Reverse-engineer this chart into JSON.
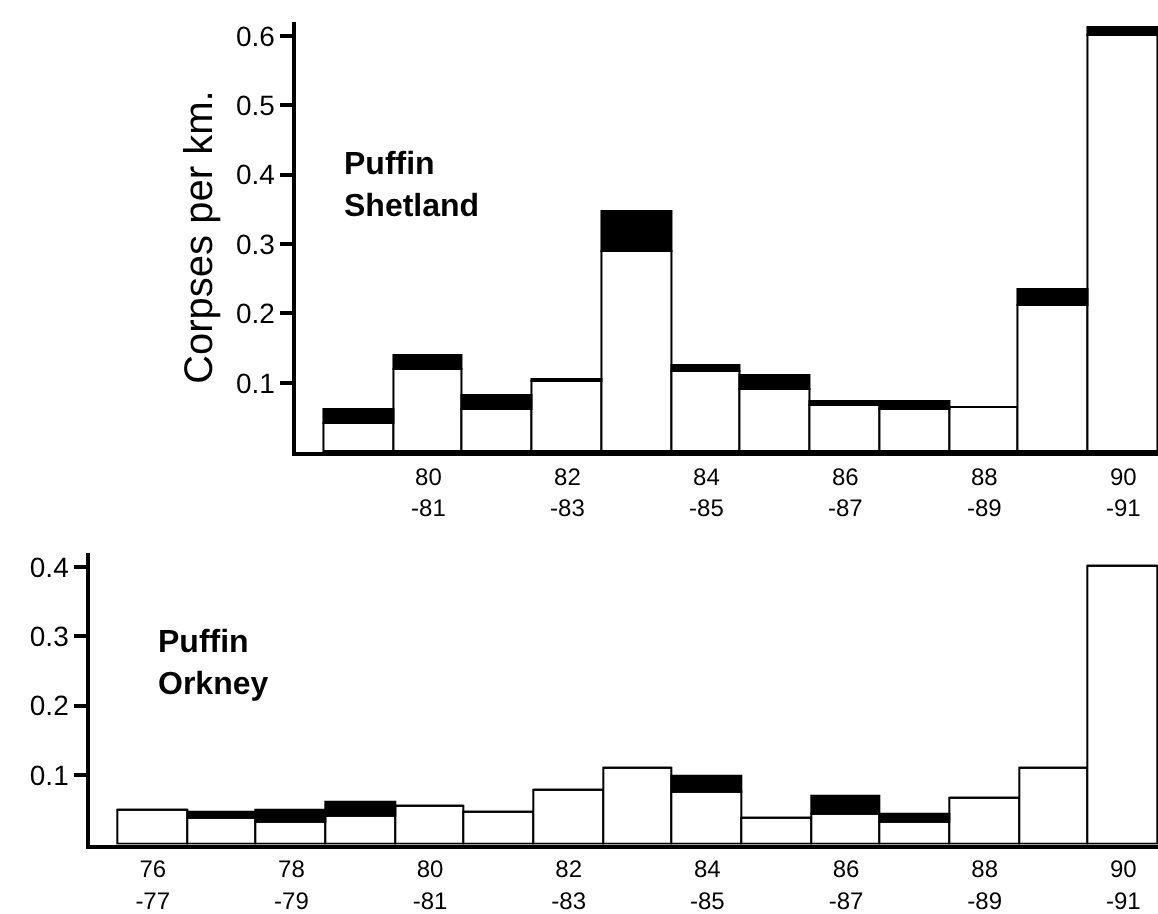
{
  "chart_data": [
    {
      "type": "bar",
      "stacked": true,
      "ylabel": "Corpses per km.",
      "annotations": [
        "Puffin\nShetland"
      ],
      "categories": [
        null,
        "80\n-81",
        null,
        "82\n-83",
        null,
        "84\n-85",
        null,
        "86\n-87",
        null,
        "88\n-89",
        null,
        "90\n-91"
      ],
      "series": [
        {
          "color": "#ffffff",
          "values": [
            0.04,
            0.12,
            0.06,
            0.1,
            0.29,
            0.115,
            0.09,
            0.067,
            0.062,
            0.065,
            0.21,
            0.6
          ]
        },
        {
          "color": "#000000",
          "values": [
            0.02,
            0.02,
            0.02,
            0.005,
            0.055,
            0.01,
            0.02,
            0.005,
            0.01,
            0,
            0.025,
            0.01
          ]
        }
      ],
      "ylim": [
        0,
        0.62
      ],
      "yticks": [
        0.1,
        0.2,
        0.3,
        0.4,
        0.5,
        0.6
      ]
    },
    {
      "type": "bar",
      "stacked": true,
      "annotations": [
        "Puffin\nOrkney"
      ],
      "categories": [
        "76\n-77",
        null,
        "78\n-79",
        null,
        "80\n-81",
        null,
        "82\n-83",
        null,
        "84\n-85",
        null,
        "86\n-87",
        null,
        "88\n-89",
        null,
        "90\n-91"
      ],
      "series": [
        {
          "color": "#ffffff",
          "values": [
            0.05,
            0.037,
            0.03,
            0.04,
            0.053,
            0.047,
            0.076,
            0.11,
            0.074,
            0.036,
            0.044,
            0.032,
            0.065,
            0.11,
            0.4
          ]
        },
        {
          "color": "#000000",
          "values": [
            0,
            0.01,
            0.02,
            0.02,
            0,
            0,
            0,
            0,
            0.023,
            0,
            0.026,
            0.01,
            0,
            0,
            0
          ]
        }
      ],
      "ylim": [
        0,
        0.42
      ],
      "yticks": [
        0.1,
        0.2,
        0.3,
        0.4
      ]
    }
  ]
}
